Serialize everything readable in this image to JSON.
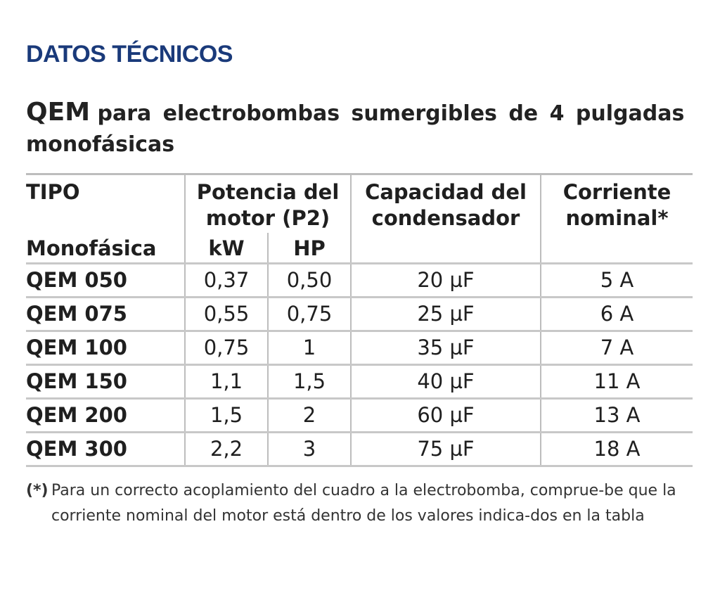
{
  "heading": "DATOS TÉCNICOS",
  "subtitle": {
    "model": "QEM",
    "description_line1": "para electrobombas sumergibles de 4 pulgadas",
    "description_line2": "monofásicas"
  },
  "table": {
    "headers": {
      "tipo": "TIPO",
      "monofasica": "Monofásica",
      "potencia_line1": "Potencia del",
      "potencia_line2": "motor (P2)",
      "kw": "kW",
      "hp": "HP",
      "capacidad_line1": "Capacidad del",
      "capacidad_line2": "condensador",
      "corriente_line1": "Corriente",
      "corriente_line2": "nominal*"
    },
    "rows": [
      {
        "tipo": "QEM 050",
        "kw": "0,37",
        "hp": "0,50",
        "capacidad": "20 µF",
        "corriente": "5 A"
      },
      {
        "tipo": "QEM 075",
        "kw": "0,55",
        "hp": "0,75",
        "capacidad": "25 µF",
        "corriente": "6 A"
      },
      {
        "tipo": "QEM 100",
        "kw": "0,75",
        "hp": "1",
        "capacidad": "35 µF",
        "corriente": "7 A"
      },
      {
        "tipo": "QEM 150",
        "kw": "1,1",
        "hp": "1,5",
        "capacidad": "40 µF",
        "corriente": "11 A"
      },
      {
        "tipo": "QEM 200",
        "kw": "1,5",
        "hp": "2",
        "capacidad": "60 µF",
        "corriente": "13 A"
      },
      {
        "tipo": "QEM 300",
        "kw": "2,2",
        "hp": "3",
        "capacidad": "75 µF",
        "corriente": "18 A"
      }
    ]
  },
  "footnote": {
    "mark": "(*)",
    "text": "Para un correcto acoplamiento del cuadro a la electrobomba, comprue-be que la corriente nominal del motor está dentro de los valores indica-dos en la tabla"
  },
  "colors": {
    "heading": "#1a3a7a",
    "rules": "#c8c8c8"
  }
}
